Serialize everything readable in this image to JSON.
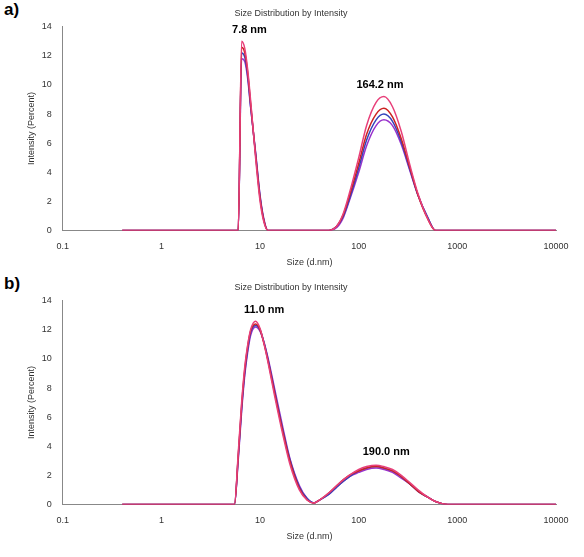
{
  "chart_data": [
    {
      "panel": "a)",
      "type": "line",
      "title": "Size Distribution by Intensity",
      "x_label": "Size (d.nm)",
      "y_label": "Intensity (Percent)",
      "log": "x",
      "grid": false,
      "xlim": [
        0.1,
        10000
      ],
      "xticks": [
        0.1,
        1,
        10,
        100,
        1000,
        10000
      ],
      "ylim": [
        0,
        14
      ],
      "yticks": [
        0,
        2,
        4,
        6,
        8,
        10,
        12,
        14
      ],
      "x": [
        0.4,
        1,
        2,
        4,
        5,
        5.5,
        6,
        6.5,
        7,
        7.5,
        8,
        9,
        10,
        11,
        12,
        14,
        17,
        20,
        25,
        30,
        35,
        40,
        50,
        60,
        70,
        80,
        100,
        120,
        150,
        180,
        220,
        270,
        330,
        400,
        500,
        600,
        800,
        1000,
        2000,
        5000,
        10000
      ],
      "series": [
        {
          "color": "#e8407a",
          "values": [
            0,
            0,
            0,
            0,
            0,
            0,
            0,
            13,
            12.5,
            11,
            9,
            5,
            2,
            0.5,
            0,
            0,
            0,
            0,
            0,
            0,
            0,
            0,
            0,
            0.3,
            1.2,
            2.5,
            5,
            7.2,
            8.8,
            9.2,
            8.5,
            6.8,
            4.5,
            2.5,
            0.8,
            0,
            0,
            0,
            0,
            0,
            0
          ]
        },
        {
          "color": "#cc2222",
          "values": [
            0,
            0,
            0,
            0,
            0,
            0,
            0,
            12.6,
            12.2,
            10.8,
            8.8,
            5.2,
            2.2,
            0.6,
            0,
            0,
            0,
            0,
            0,
            0,
            0,
            0,
            0,
            0.3,
            1.1,
            2.3,
            4.6,
            6.6,
            8,
            8.4,
            7.8,
            6.3,
            4.3,
            2.4,
            0.8,
            0,
            0,
            0,
            0,
            0,
            0
          ]
        },
        {
          "color": "#3344bb",
          "values": [
            0,
            0,
            0,
            0,
            0,
            0,
            0,
            12.2,
            11.9,
            10.6,
            8.6,
            5.3,
            2.3,
            0.6,
            0,
            0,
            0,
            0,
            0,
            0,
            0,
            0,
            0,
            0.3,
            1,
            2.1,
            4.3,
            6.2,
            7.6,
            8,
            7.5,
            6.1,
            4.2,
            2.4,
            0.9,
            0,
            0,
            0,
            0,
            0,
            0
          ]
        },
        {
          "color": "#9933cc",
          "values": [
            0,
            0,
            0,
            0,
            0,
            0,
            0,
            11.8,
            11.6,
            10.4,
            8.5,
            5.4,
            2.4,
            0.7,
            0,
            0,
            0,
            0,
            0,
            0,
            0,
            0,
            0,
            0.2,
            0.9,
            2,
            4,
            5.8,
            7.2,
            7.6,
            7.2,
            5.9,
            4.1,
            2.4,
            0.9,
            0,
            0,
            0,
            0,
            0,
            0
          ]
        }
      ],
      "annotations": [
        {
          "text": "7.8 nm",
          "x": 7.8,
          "y": 13.4
        },
        {
          "text": "164.2 nm",
          "x": 164.2,
          "y": 9.6
        }
      ]
    },
    {
      "panel": "b)",
      "type": "line",
      "title": "Size Distribution by Intensity",
      "x_label": "Size (d.nm)",
      "y_label": "Intensity (Percent)",
      "log": "x",
      "grid": false,
      "xlim": [
        0.1,
        10000
      ],
      "xticks": [
        0.1,
        1,
        10,
        100,
        1000,
        10000
      ],
      "ylim": [
        0,
        14
      ],
      "yticks": [
        0,
        2,
        4,
        6,
        8,
        10,
        12,
        14
      ],
      "x": [
        0.4,
        1,
        2,
        4,
        5,
        5.5,
        6,
        6.5,
        7,
        7.5,
        8,
        9,
        10,
        11,
        12,
        14,
        17,
        20,
        25,
        30,
        35,
        40,
        50,
        60,
        70,
        80,
        100,
        120,
        150,
        180,
        220,
        270,
        330,
        400,
        500,
        600,
        800,
        1000,
        2000,
        5000,
        10000
      ],
      "series": [
        {
          "color": "#e8407a",
          "values": [
            0,
            0,
            0,
            0,
            0,
            0,
            3.5,
            7,
            9.5,
            11,
            12,
            12.6,
            12.1,
            11,
            9.8,
            7.5,
            4.8,
            2.8,
            1,
            0.3,
            0.1,
            0.3,
            0.8,
            1.3,
            1.7,
            2,
            2.4,
            2.6,
            2.7,
            2.6,
            2.4,
            2,
            1.5,
            1,
            0.5,
            0.2,
            0,
            0,
            0,
            0,
            0
          ]
        },
        {
          "color": "#cc2222",
          "values": [
            0,
            0,
            0,
            0,
            0,
            0,
            3.3,
            6.8,
            9.3,
            10.9,
            11.9,
            12.4,
            12,
            11,
            9.9,
            7.7,
            5,
            3,
            1.1,
            0.3,
            0.1,
            0.3,
            0.8,
            1.3,
            1.7,
            2,
            2.3,
            2.5,
            2.6,
            2.5,
            2.3,
            1.9,
            1.4,
            0.9,
            0.5,
            0.2,
            0,
            0,
            0,
            0,
            0
          ]
        },
        {
          "color": "#3344bb",
          "values": [
            0,
            0,
            0,
            0,
            0,
            0,
            3.2,
            6.6,
            9.1,
            10.7,
            11.8,
            12.3,
            12,
            11.1,
            10,
            7.8,
            5.1,
            3.1,
            1.2,
            0.4,
            0.1,
            0.3,
            0.7,
            1.2,
            1.6,
            1.9,
            2.3,
            2.5,
            2.6,
            2.5,
            2.3,
            1.9,
            1.4,
            0.9,
            0.5,
            0.2,
            0,
            0,
            0,
            0,
            0
          ]
        },
        {
          "color": "#9933cc",
          "values": [
            0,
            0,
            0,
            0,
            0,
            0,
            3,
            6.4,
            8.9,
            10.5,
            11.6,
            12.2,
            11.9,
            11.1,
            10.1,
            8,
            5.3,
            3.2,
            1.3,
            0.4,
            0.1,
            0.3,
            0.7,
            1.2,
            1.6,
            1.9,
            2.2,
            2.4,
            2.5,
            2.4,
            2.2,
            1.8,
            1.4,
            0.9,
            0.5,
            0.2,
            0,
            0,
            0,
            0,
            0
          ]
        }
      ],
      "annotations": [
        {
          "text": "11.0 nm",
          "x": 11.0,
          "y": 13.0
        },
        {
          "text": "190.0 nm",
          "x": 190.0,
          "y": 3.2
        }
      ]
    }
  ]
}
